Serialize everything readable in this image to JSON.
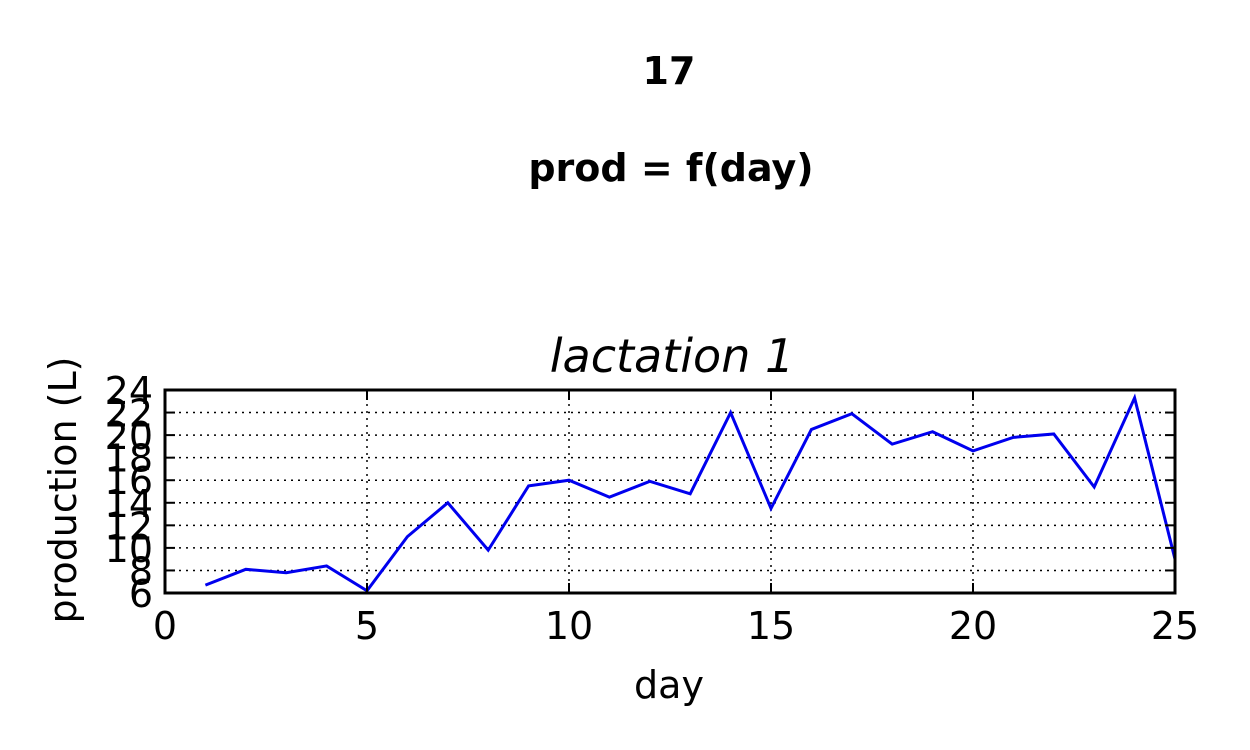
{
  "chart_data": {
    "type": "line",
    "suptitle_lines": [
      "17",
      "prod = f(day)"
    ],
    "title": "lactation 1",
    "xlabel": "day",
    "ylabel": "production (L)",
    "xlim": [
      0,
      25
    ],
    "ylim": [
      6,
      24
    ],
    "xticks": [
      0,
      5,
      10,
      15,
      20,
      25
    ],
    "yticks": [
      6,
      8,
      10,
      12,
      14,
      16,
      18,
      20,
      22,
      24
    ],
    "grid": true,
    "line_color": "#0000ee",
    "series": [
      {
        "x": [
          1,
          2,
          3,
          4,
          5,
          6,
          7,
          8,
          9,
          10,
          11,
          12,
          13,
          14,
          15,
          16,
          17,
          18,
          19,
          20,
          21,
          22,
          23,
          24,
          25
        ],
        "y": [
          6.7,
          8.1,
          7.8,
          8.4,
          6.2,
          11.0,
          14.0,
          9.8,
          15.5,
          16.0,
          14.5,
          15.9,
          14.8,
          22.0,
          13.5,
          20.5,
          21.9,
          19.2,
          20.3,
          18.6,
          19.8,
          20.1,
          15.4,
          23.3,
          9.0
        ]
      }
    ]
  }
}
